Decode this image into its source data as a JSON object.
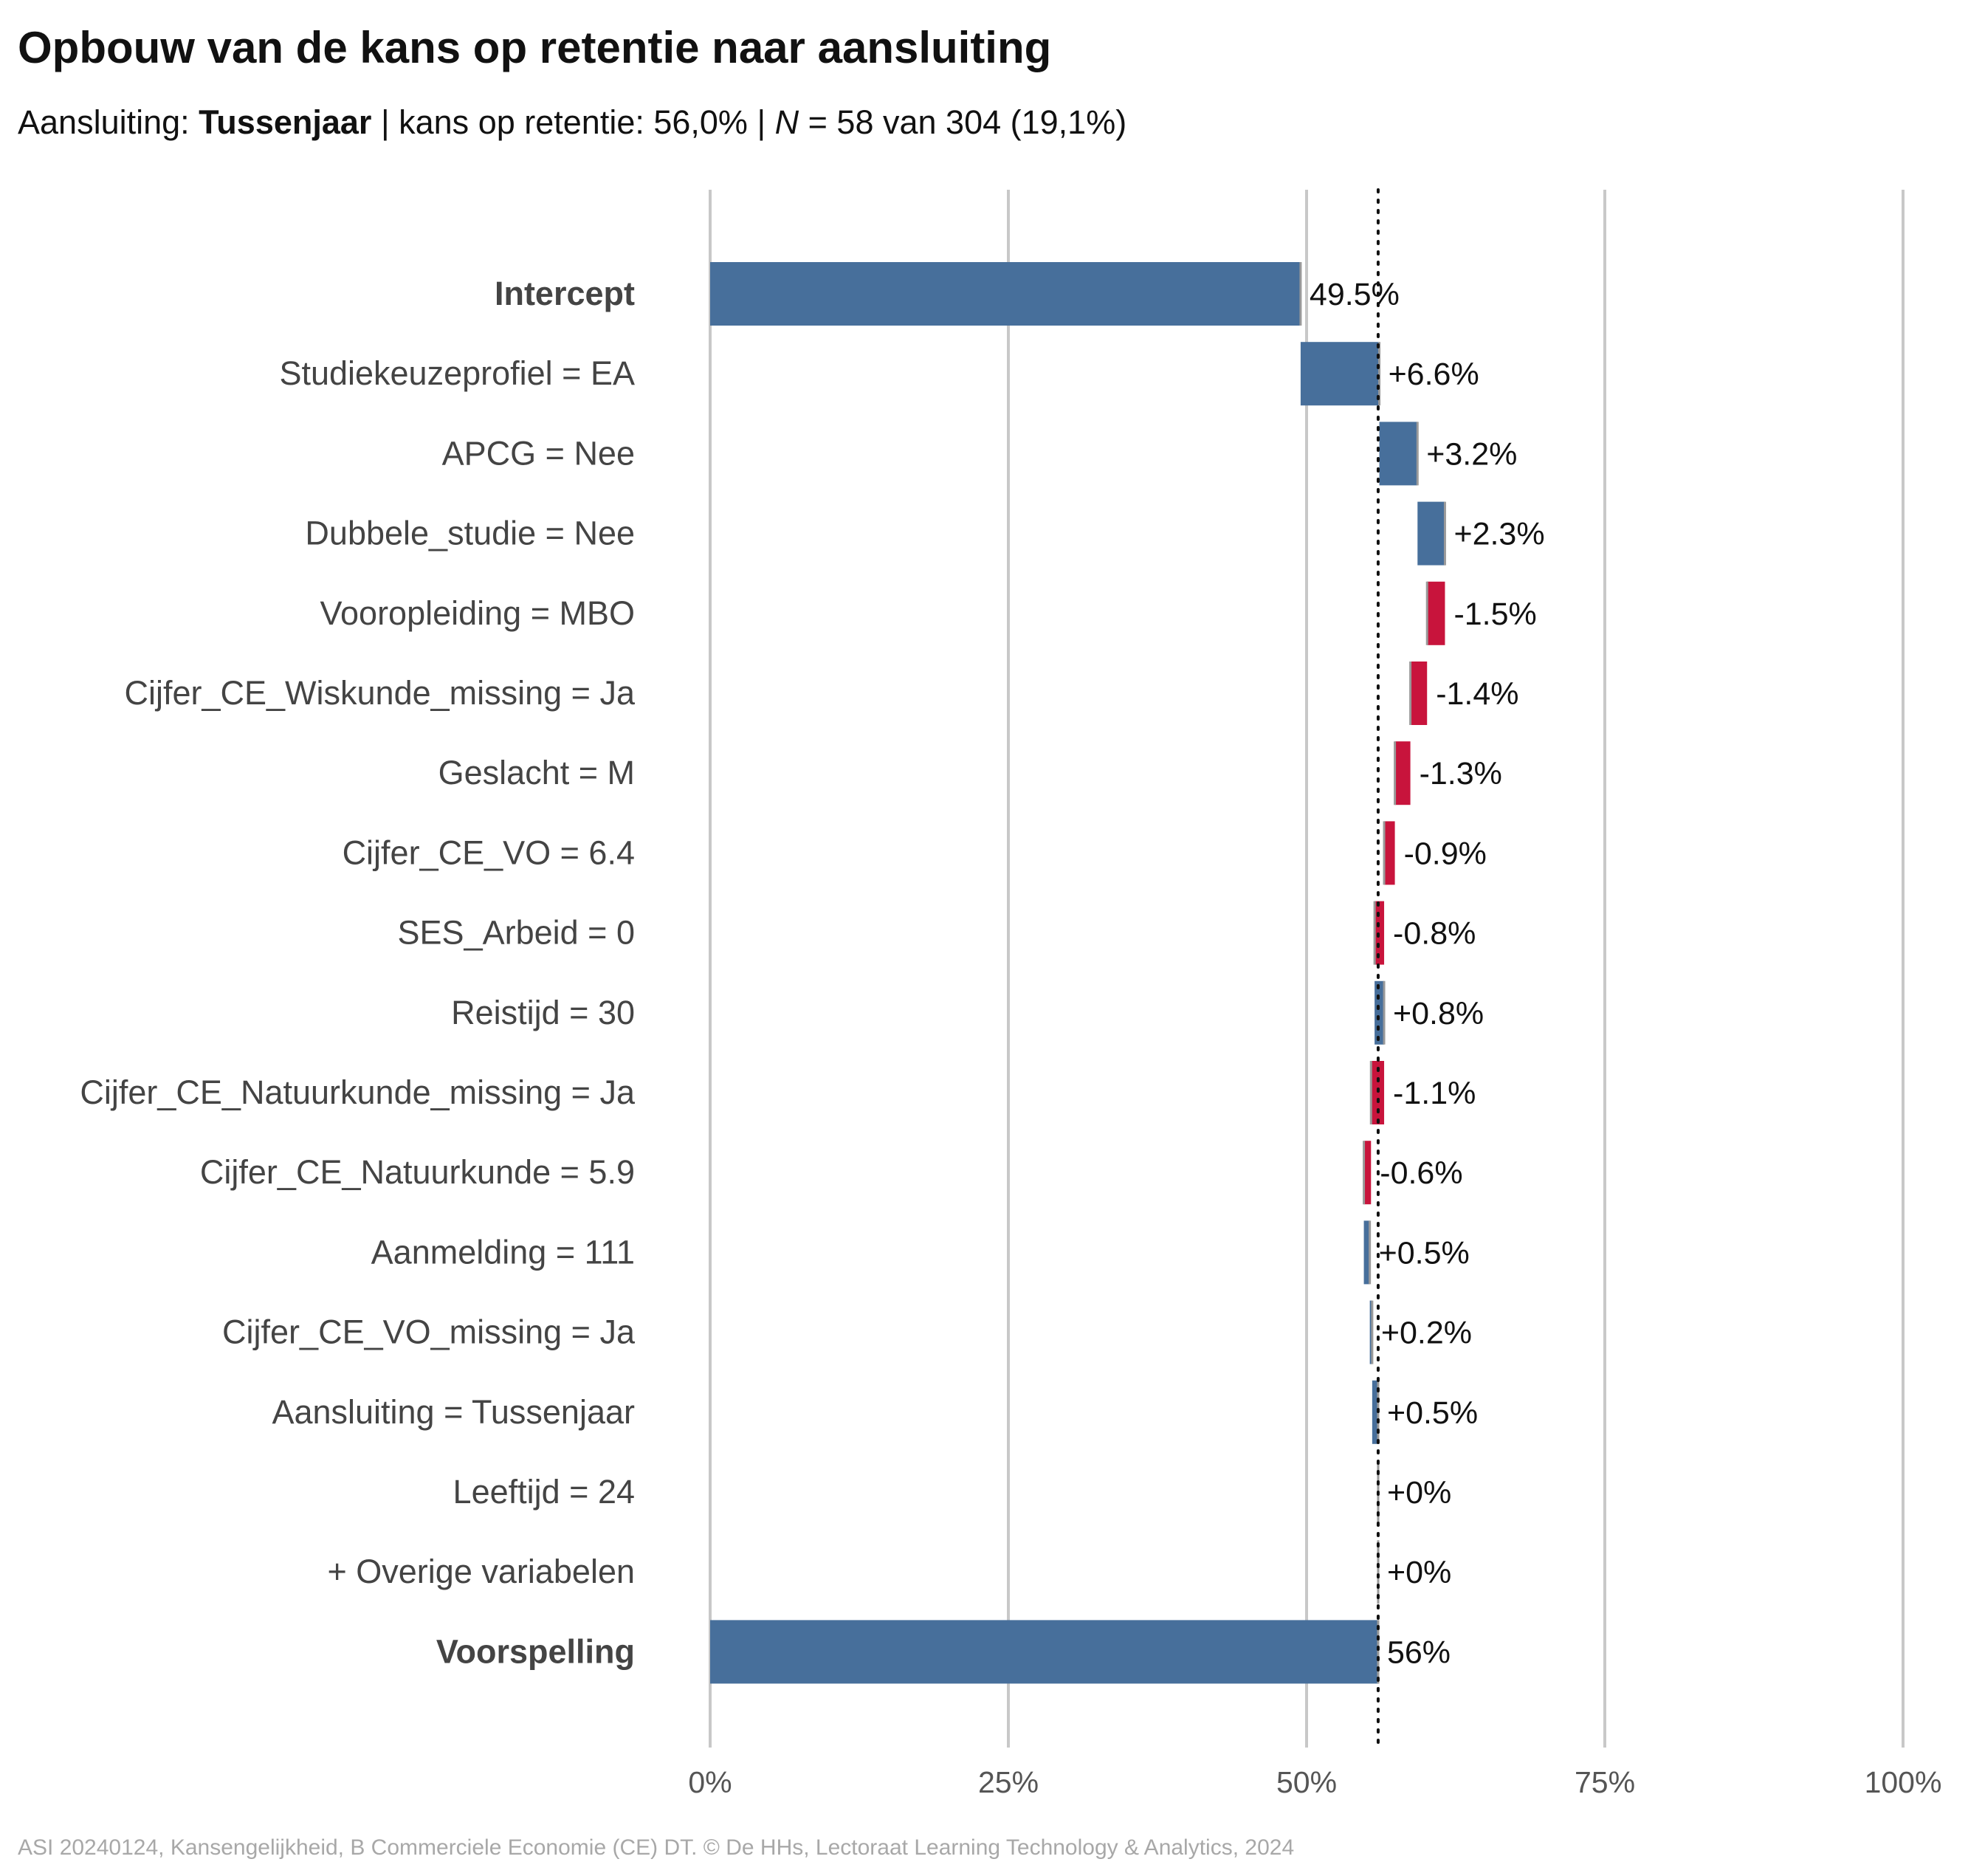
{
  "title": "Opbouw van de kans op retentie naar aansluiting",
  "subtitle": {
    "prefix": "Aansluiting: ",
    "group": "Tussenjaar",
    "middle": " | kans op retentie: 56,0% | ",
    "n_symbol": "N",
    "suffix": " = 58 van 304 (19,1%)"
  },
  "caption": "ASI 20240124, Kansengelijkheid, B Commerciele Economie (CE) DT. © De HHs, Lectoraat Learning Technology & Analytics, 2024",
  "colors": {
    "positive": "#476f9b",
    "negative": "#c8143c",
    "grid": "#c8c8c8",
    "label_text": "#444444",
    "value_text": "#111111",
    "reference_line": "#111111"
  },
  "chart_data": {
    "type": "bar",
    "subtype": "waterfall (horizontal)",
    "x_unit": "%",
    "xlim": [
      0,
      100
    ],
    "x_ticks": [
      "0%",
      "25%",
      "50%",
      "75%",
      "100%"
    ],
    "x_tick_values": [
      0,
      25,
      50,
      75,
      100
    ],
    "reference_line": {
      "value": 56.0,
      "style": "dotted"
    },
    "grid": "vertical",
    "rows": [
      {
        "label": "Intercept",
        "bold": true,
        "kind": "total",
        "start": 0,
        "end": 49.5,
        "value_label": "49.5%"
      },
      {
        "label": "Studiekeuzeprofiel = EA",
        "kind": "delta",
        "start": 49.5,
        "end": 56.1,
        "value_label": "+6.6%"
      },
      {
        "label": "APCG = Nee",
        "kind": "delta",
        "start": 56.1,
        "end": 59.3,
        "value_label": "+3.2%"
      },
      {
        "label": "Dubbele_studie = Nee",
        "kind": "delta",
        "start": 59.3,
        "end": 61.6,
        "value_label": "+2.3%"
      },
      {
        "label": "Vooropleiding = MBO",
        "kind": "delta",
        "start": 61.6,
        "end": 60.1,
        "value_label": "-1.5%"
      },
      {
        "label": "Cijfer_CE_Wiskunde_missing = Ja",
        "kind": "delta",
        "start": 60.1,
        "end": 58.7,
        "value_label": "-1.4%"
      },
      {
        "label": "Geslacht = M",
        "kind": "delta",
        "start": 58.7,
        "end": 57.4,
        "value_label": "-1.3%"
      },
      {
        "label": "Cijfer_CE_VO = 6.4",
        "kind": "delta",
        "start": 57.4,
        "end": 56.5,
        "value_label": "-0.9%"
      },
      {
        "label": "SES_Arbeid = 0",
        "kind": "delta",
        "start": 56.5,
        "end": 55.7,
        "value_label": "-0.8%"
      },
      {
        "label": "Reistijd = 30",
        "kind": "delta",
        "start": 55.7,
        "end": 56.5,
        "value_label": "+0.8%"
      },
      {
        "label": "Cijfer_CE_Natuurkunde_missing = Ja",
        "kind": "delta",
        "start": 56.5,
        "end": 55.4,
        "value_label": "-1.1%"
      },
      {
        "label": "Cijfer_CE_Natuurkunde = 5.9",
        "kind": "delta",
        "start": 55.4,
        "end": 54.8,
        "value_label": "-0.6%"
      },
      {
        "label": "Aanmelding = 111",
        "kind": "delta",
        "start": 54.8,
        "end": 55.3,
        "value_label": "+0.5%"
      },
      {
        "label": "Cijfer_CE_VO_missing = Ja",
        "kind": "delta",
        "start": 55.3,
        "end": 55.5,
        "value_label": "+0.2%"
      },
      {
        "label": "Aansluiting = Tussenjaar",
        "kind": "delta",
        "start": 55.5,
        "end": 56.0,
        "value_label": "+0.5%"
      },
      {
        "label": "Leeftijd = 24",
        "kind": "delta",
        "start": 56.0,
        "end": 56.0,
        "value_label": "+0%"
      },
      {
        "label": "+ Overige variabelen",
        "kind": "delta",
        "start": 56.0,
        "end": 56.0,
        "value_label": "+0%"
      },
      {
        "label": "Voorspelling",
        "bold": true,
        "kind": "total",
        "start": 0,
        "end": 56.0,
        "value_label": "56%"
      }
    ]
  }
}
